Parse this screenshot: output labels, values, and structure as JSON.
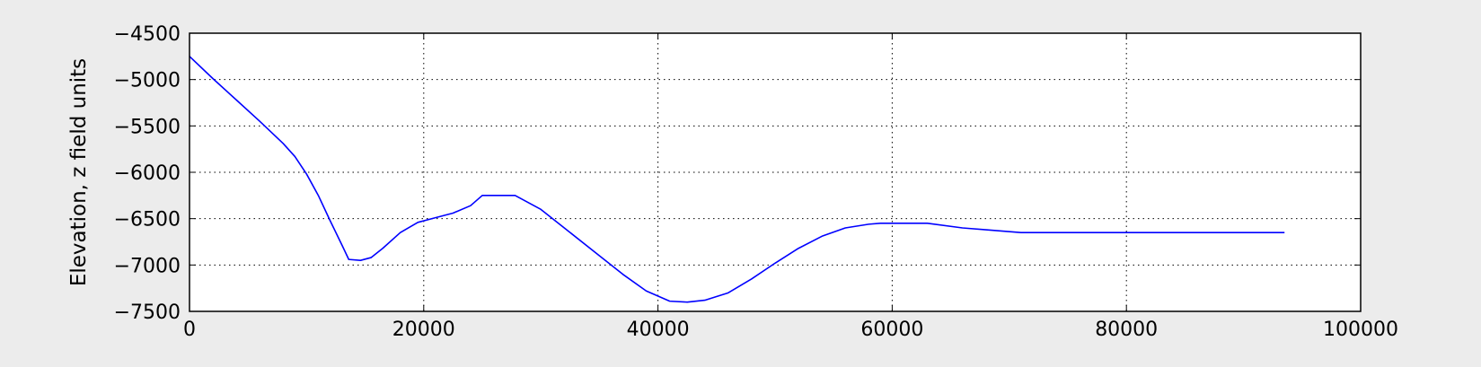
{
  "chart_data": {
    "type": "line",
    "title": "",
    "xlabel": "",
    "ylabel": "Elevation, z field units",
    "xlim": [
      0,
      100000
    ],
    "ylim": [
      -7500,
      -4500
    ],
    "x_ticks": [
      0,
      20000,
      40000,
      60000,
      80000,
      100000
    ],
    "x_tick_labels": [
      "0",
      "20000",
      "40000",
      "60000",
      "80000",
      "100000"
    ],
    "y_ticks": [
      -4500,
      -5000,
      -5500,
      -6000,
      -6500,
      -7000,
      -7500
    ],
    "y_tick_labels": [
      "−4500",
      "−5000",
      "−5500",
      "−6000",
      "−6500",
      "−7000",
      "−7500"
    ],
    "grid": true,
    "grid_style": "dotted",
    "legend": "none",
    "colors": {
      "line": "#0000ff",
      "background": "#ececec",
      "plot_area": "#ffffff",
      "grid": "#000000"
    },
    "series": [
      {
        "values": [
          [
            0,
            -4750
          ],
          [
            2000,
            -4990
          ],
          [
            4000,
            -5220
          ],
          [
            6000,
            -5450
          ],
          [
            8000,
            -5690
          ],
          [
            9000,
            -5830
          ],
          [
            10000,
            -6020
          ],
          [
            11000,
            -6250
          ],
          [
            12000,
            -6520
          ],
          [
            13000,
            -6780
          ],
          [
            13600,
            -6940
          ],
          [
            14600,
            -6950
          ],
          [
            15500,
            -6920
          ],
          [
            16500,
            -6820
          ],
          [
            18000,
            -6650
          ],
          [
            19500,
            -6540
          ],
          [
            21000,
            -6490
          ],
          [
            22500,
            -6440
          ],
          [
            24000,
            -6360
          ],
          [
            25000,
            -6250
          ],
          [
            27000,
            -6250
          ],
          [
            27800,
            -6250
          ],
          [
            30000,
            -6400
          ],
          [
            32000,
            -6600
          ],
          [
            35000,
            -6900
          ],
          [
            37000,
            -7100
          ],
          [
            39000,
            -7280
          ],
          [
            41000,
            -7390
          ],
          [
            42500,
            -7400
          ],
          [
            44000,
            -7380
          ],
          [
            46000,
            -7300
          ],
          [
            48000,
            -7150
          ],
          [
            50000,
            -6980
          ],
          [
            52000,
            -6820
          ],
          [
            54000,
            -6690
          ],
          [
            56000,
            -6600
          ],
          [
            58000,
            -6560
          ],
          [
            59000,
            -6550
          ],
          [
            61000,
            -6550
          ],
          [
            63000,
            -6550
          ],
          [
            66000,
            -6600
          ],
          [
            68000,
            -6620
          ],
          [
            71000,
            -6650
          ],
          [
            80000,
            -6650
          ],
          [
            93500,
            -6650
          ]
        ]
      }
    ]
  }
}
